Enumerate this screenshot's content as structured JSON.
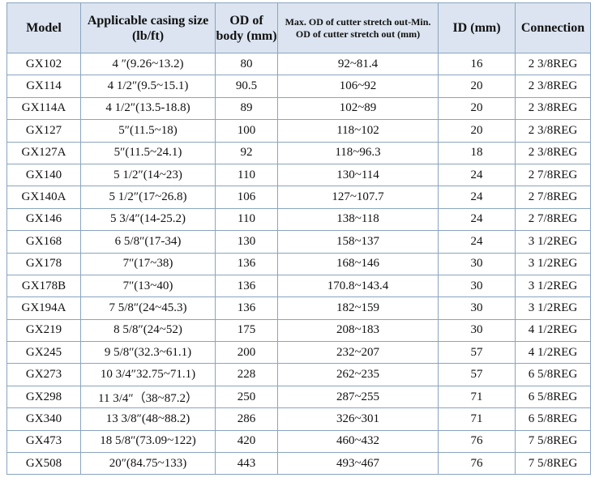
{
  "table": {
    "headers": [
      "Model",
      "Applicable casing size (lb/ft)",
      "OD of body (mm)",
      "Max. OD of cutter stretch out-Min. OD of cutter stretch out (mm)",
      "ID (mm)",
      "Connection"
    ],
    "rows": [
      [
        "GX102",
        "4 ″(9.26~13.2)",
        "80",
        "92~81.4",
        "16",
        "2 3/8REG"
      ],
      [
        "GX114",
        "4 1/2″(9.5~15.1)",
        "90.5",
        "106~92",
        "20",
        "2 3/8REG"
      ],
      [
        "GX114A",
        "4 1/2″(13.5-18.8)",
        "89",
        "102~89",
        "20",
        "2 3/8REG"
      ],
      [
        "GX127",
        "5″(11.5~18)",
        "100",
        "118~102",
        "20",
        "2 3/8REG"
      ],
      [
        "GX127A",
        "5″(11.5~24.1)",
        "92",
        "118~96.3",
        "18",
        "2 3/8REG"
      ],
      [
        "GX140",
        "5 1/2″(14~23)",
        "110",
        "130~114",
        "24",
        "2 7/8REG"
      ],
      [
        "GX140A",
        "5 1/2″(17~26.8)",
        "106",
        "127~107.7",
        "24",
        "2 7/8REG"
      ],
      [
        "GX146",
        "5 3/4″(14-25.2)",
        "110",
        "138~118",
        "24",
        "2 7/8REG"
      ],
      [
        "GX168",
        "6 5/8″(17-34)",
        "130",
        "158~137",
        "24",
        "3 1/2REG"
      ],
      [
        "GX178",
        "7″(17~38)",
        "136",
        "168~146",
        "30",
        "3 1/2REG"
      ],
      [
        "GX178B",
        "7″(13~40)",
        "136",
        "170.8~143.4",
        "30",
        "3 1/2REG"
      ],
      [
        "GX194A",
        "7 5/8″(24~45.3)",
        "136",
        "182~159",
        "30",
        "3 1/2REG"
      ],
      [
        "GX219",
        "8 5/8″(24~52)",
        "175",
        "208~183",
        "30",
        "4 1/2REG"
      ],
      [
        "GX245",
        "9 5/8″(32.3~61.1)",
        "200",
        "232~207",
        "57",
        "4 1/2REG"
      ],
      [
        "GX273",
        "10 3/4″32.75~71.1)",
        "228",
        "262~235",
        "57",
        "6 5/8REG"
      ],
      [
        "GX298",
        "11 3/4″（38~87.2）",
        "250",
        "287~255",
        "71",
        "6 5/8REG"
      ],
      [
        "GX340",
        "13 3/8″(48~88.2)",
        "286",
        "326~301",
        "71",
        "6 5/8REG"
      ],
      [
        "GX473",
        "18 5/8″(73.09~122)",
        "420",
        "460~432",
        "76",
        "7 5/8REG"
      ],
      [
        "GX508",
        "20″(84.75~133)",
        "443",
        "493~467",
        "76",
        "7 5/8REG"
      ]
    ]
  }
}
